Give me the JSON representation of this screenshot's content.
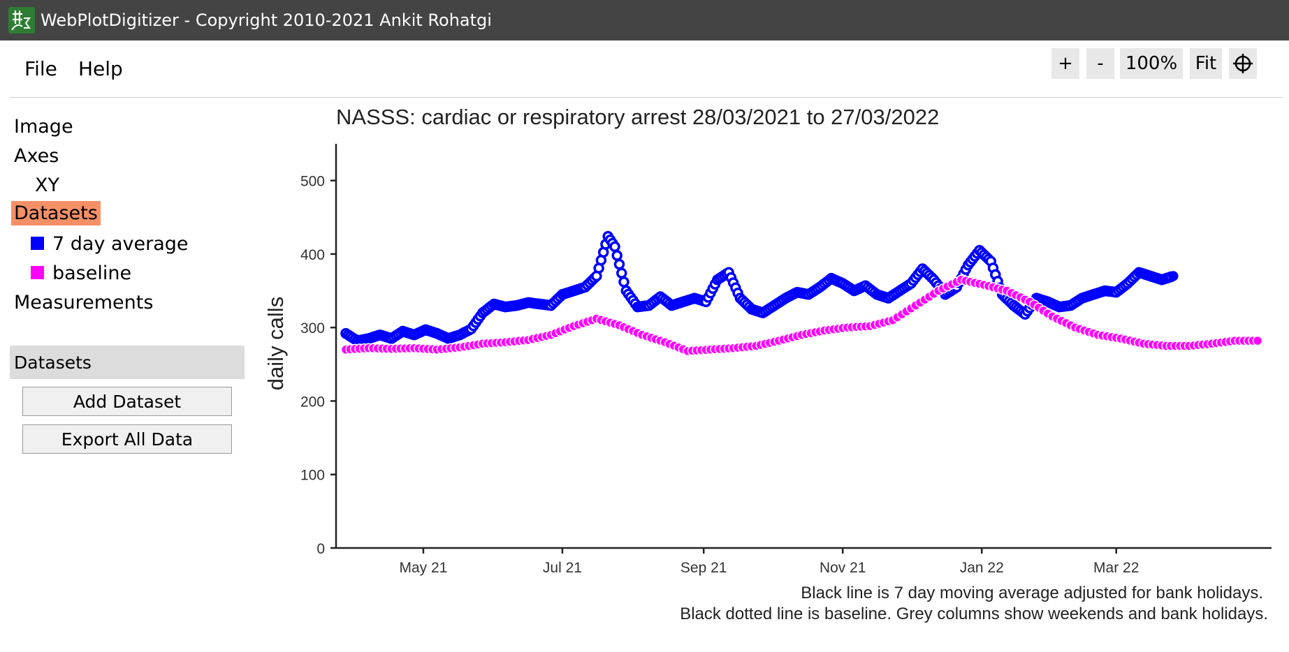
{
  "window": {
    "title": "WebPlotDigitizer - Copyright 2010-2021 Ankit Rohatgi"
  },
  "menu": {
    "file": "File",
    "help": "Help"
  },
  "zoom": {
    "in": "+",
    "out": "-",
    "level": "100%",
    "fit": "Fit",
    "crosshair_icon": "crosshair-icon"
  },
  "sidebar": {
    "tree": {
      "image": "Image",
      "axes": "Axes",
      "xy": "XY",
      "datasets": "Datasets",
      "dataset_items": [
        {
          "label": "7 day average",
          "color": "#0000ff"
        },
        {
          "label": "baseline",
          "color": "#ff00ff"
        }
      ],
      "measurements": "Measurements"
    },
    "panel": {
      "title": "Datasets",
      "add_button": "Add Dataset",
      "export_button": "Export All Data"
    }
  },
  "chart_data": {
    "type": "line",
    "title": "NASSS: cardiac or respiratory arrest 28/03/2021 to 27/03/2022",
    "ylabel": "daily calls",
    "xlabel": "",
    "ylim": [
      0,
      550
    ],
    "yticks": [
      0,
      100,
      200,
      300,
      400,
      500
    ],
    "xlim": [
      "2021-03-28",
      "2022-05-02"
    ],
    "xticks": [
      {
        "label": "May 21",
        "date": "2021-05-01"
      },
      {
        "label": "Jul 21",
        "date": "2021-07-01"
      },
      {
        "label": "Sep 21",
        "date": "2021-09-01"
      },
      {
        "label": "Nov 21",
        "date": "2021-11-01"
      },
      {
        "label": "Jan 22",
        "date": "2022-01-01"
      },
      {
        "label": "Mar 22",
        "date": "2022-03-01"
      }
    ],
    "caption_line1": "Black line is 7 day moving average adjusted for bank holidays.",
    "caption_line2": "Black dotted line is baseline. Grey columns show weekends and bank holidays.",
    "series": [
      {
        "name": "7 day average",
        "color": "#0000ff",
        "marker": "open-circle",
        "points": [
          [
            "2021-03-28",
            292
          ],
          [
            "2021-04-02",
            282
          ],
          [
            "2021-04-07",
            285
          ],
          [
            "2021-04-12",
            290
          ],
          [
            "2021-04-17",
            285
          ],
          [
            "2021-04-22",
            295
          ],
          [
            "2021-04-27",
            290
          ],
          [
            "2021-05-02",
            297
          ],
          [
            "2021-05-07",
            292
          ],
          [
            "2021-05-12",
            285
          ],
          [
            "2021-05-17",
            290
          ],
          [
            "2021-05-22",
            298
          ],
          [
            "2021-05-27",
            320
          ],
          [
            "2021-06-01",
            332
          ],
          [
            "2021-06-06",
            328
          ],
          [
            "2021-06-11",
            330
          ],
          [
            "2021-06-16",
            334
          ],
          [
            "2021-06-21",
            332
          ],
          [
            "2021-06-26",
            330
          ],
          [
            "2021-07-01",
            345
          ],
          [
            "2021-07-06",
            350
          ],
          [
            "2021-07-11",
            355
          ],
          [
            "2021-07-16",
            370
          ],
          [
            "2021-07-21",
            424
          ],
          [
            "2021-07-24",
            410
          ],
          [
            "2021-07-29",
            350
          ],
          [
            "2021-08-03",
            328
          ],
          [
            "2021-08-08",
            330
          ],
          [
            "2021-08-13",
            342
          ],
          [
            "2021-08-18",
            330
          ],
          [
            "2021-08-23",
            335
          ],
          [
            "2021-08-28",
            340
          ],
          [
            "2021-09-02",
            335
          ],
          [
            "2021-09-07",
            365
          ],
          [
            "2021-09-12",
            375
          ],
          [
            "2021-09-17",
            340
          ],
          [
            "2021-09-22",
            325
          ],
          [
            "2021-09-27",
            320
          ],
          [
            "2021-10-02",
            330
          ],
          [
            "2021-10-07",
            340
          ],
          [
            "2021-10-12",
            348
          ],
          [
            "2021-10-17",
            345
          ],
          [
            "2021-10-22",
            355
          ],
          [
            "2021-10-27",
            367
          ],
          [
            "2021-11-01",
            360
          ],
          [
            "2021-11-06",
            350
          ],
          [
            "2021-11-11",
            357
          ],
          [
            "2021-11-16",
            345
          ],
          [
            "2021-11-21",
            340
          ],
          [
            "2021-11-26",
            350
          ],
          [
            "2021-12-01",
            360
          ],
          [
            "2021-12-06",
            380
          ],
          [
            "2021-12-11",
            365
          ],
          [
            "2021-12-16",
            345
          ],
          [
            "2021-12-21",
            355
          ],
          [
            "2021-12-26",
            385
          ],
          [
            "2021-12-31",
            405
          ],
          [
            "2022-01-05",
            390
          ],
          [
            "2022-01-10",
            345
          ],
          [
            "2022-01-15",
            330
          ],
          [
            "2022-01-20",
            318
          ],
          [
            "2022-01-25",
            340
          ],
          [
            "2022-01-30",
            335
          ],
          [
            "2022-02-04",
            328
          ],
          [
            "2022-02-09",
            330
          ],
          [
            "2022-02-14",
            340
          ],
          [
            "2022-02-19",
            345
          ],
          [
            "2022-02-24",
            350
          ],
          [
            "2022-03-01",
            348
          ],
          [
            "2022-03-06",
            360
          ],
          [
            "2022-03-11",
            375
          ],
          [
            "2022-03-16",
            370
          ],
          [
            "2022-03-21",
            365
          ],
          [
            "2022-03-26",
            370
          ]
        ]
      },
      {
        "name": "baseline",
        "color": "#ff00ff",
        "marker": "filled-circle",
        "points": [
          [
            "2021-03-28",
            270
          ],
          [
            "2021-04-07",
            272
          ],
          [
            "2021-04-17",
            271
          ],
          [
            "2021-04-27",
            272
          ],
          [
            "2021-05-07",
            270
          ],
          [
            "2021-05-17",
            273
          ],
          [
            "2021-05-27",
            278
          ],
          [
            "2021-06-06",
            280
          ],
          [
            "2021-06-16",
            283
          ],
          [
            "2021-06-26",
            290
          ],
          [
            "2021-07-06",
            302
          ],
          [
            "2021-07-16",
            312
          ],
          [
            "2021-07-26",
            303
          ],
          [
            "2021-08-05",
            290
          ],
          [
            "2021-08-15",
            280
          ],
          [
            "2021-08-25",
            268
          ],
          [
            "2021-09-04",
            270
          ],
          [
            "2021-09-14",
            272
          ],
          [
            "2021-09-24",
            275
          ],
          [
            "2021-10-04",
            282
          ],
          [
            "2021-10-14",
            290
          ],
          [
            "2021-10-24",
            296
          ],
          [
            "2021-11-03",
            300
          ],
          [
            "2021-11-13",
            302
          ],
          [
            "2021-11-23",
            310
          ],
          [
            "2021-12-03",
            330
          ],
          [
            "2021-12-13",
            350
          ],
          [
            "2021-12-23",
            365
          ],
          [
            "2022-01-02",
            358
          ],
          [
            "2022-01-12",
            350
          ],
          [
            "2022-01-22",
            335
          ],
          [
            "2022-02-01",
            315
          ],
          [
            "2022-02-11",
            300
          ],
          [
            "2022-02-21",
            290
          ],
          [
            "2022-03-03",
            285
          ],
          [
            "2022-03-13",
            278
          ],
          [
            "2022-03-23",
            275
          ],
          [
            "2022-04-02",
            275
          ],
          [
            "2022-04-12",
            278
          ],
          [
            "2022-04-22",
            282
          ],
          [
            "2022-05-02",
            282
          ]
        ]
      }
    ]
  }
}
